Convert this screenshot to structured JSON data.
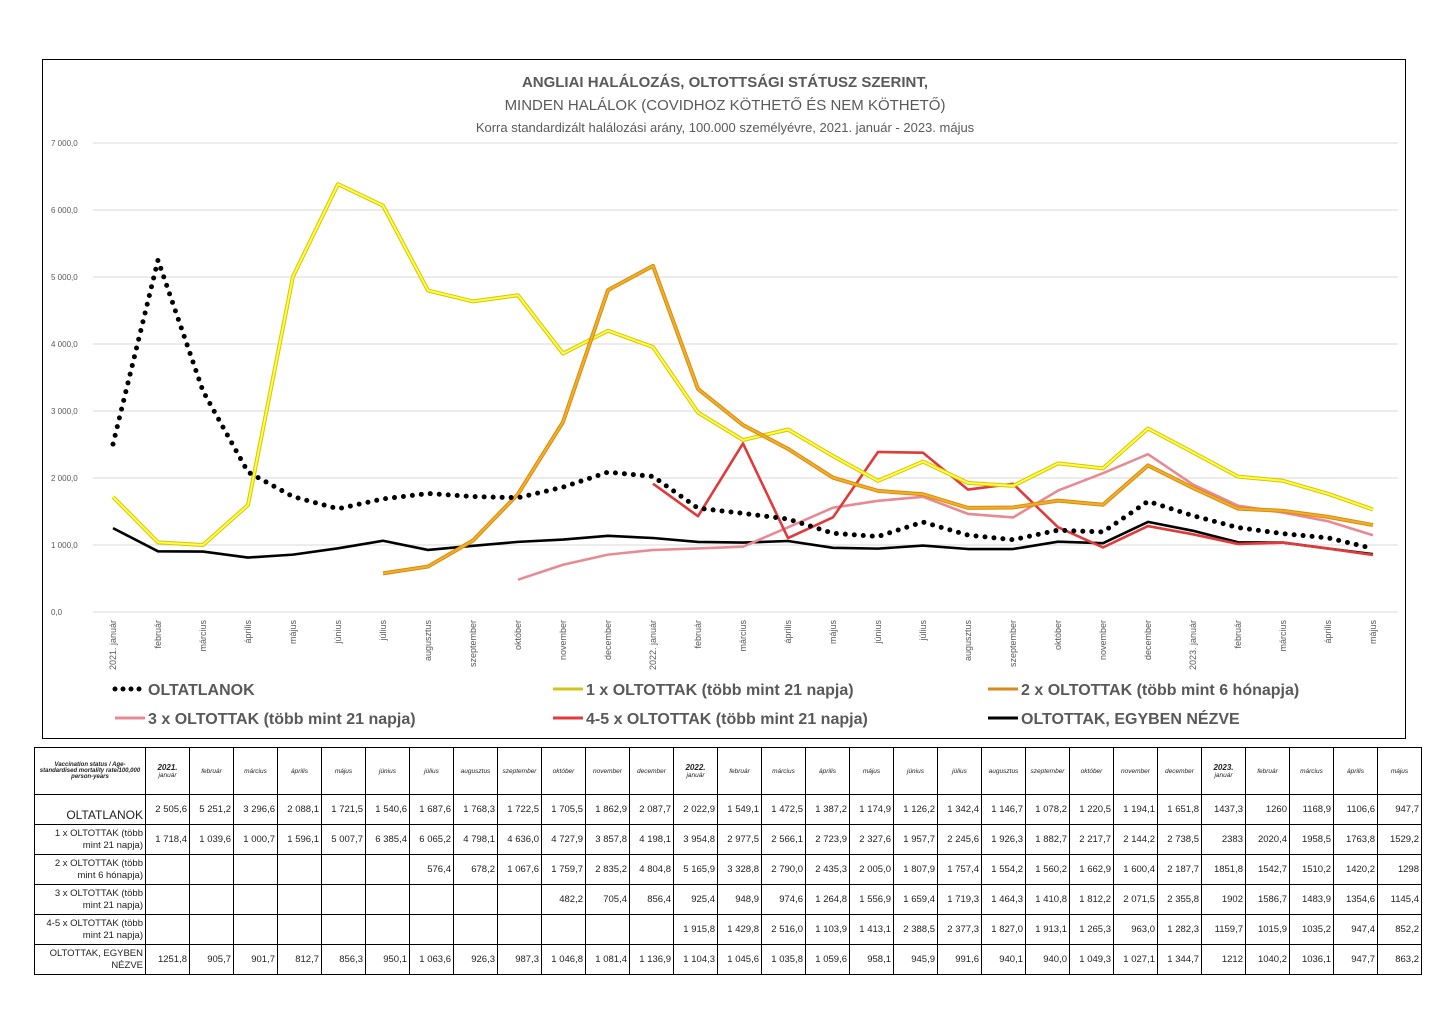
{
  "chart_data": {
    "type": "line",
    "title": "ANGLIAI HALÁLOZÁS, OLTOTTSÁGI STÁTUSZ SZERINT,",
    "subtitle": "MINDEN HALÁLOK (COVIDHOZ KÖTHETŐ ÉS NEM KÖTHETŐ)",
    "subtitle2": "Korra standardizált halálozási arány, 100.000 személyévre, 2021. január - 2023. május",
    "ylim": [
      0,
      7000
    ],
    "yticks": [
      "0,0",
      "1 000,0",
      "2 000,0",
      "3 000,0",
      "4 000,0",
      "5 000,0",
      "6 000,0",
      "7 000,0"
    ],
    "grid": true,
    "legend_position": "bottom",
    "categories": [
      "2021. január",
      "február",
      "március",
      "április",
      "május",
      "június",
      "július",
      "augusztus",
      "szeptember",
      "október",
      "november",
      "december",
      "2022. január",
      "február",
      "március",
      "április",
      "május",
      "június",
      "július",
      "augusztus",
      "szeptember",
      "október",
      "november",
      "december",
      "2023. január",
      "február",
      "március",
      "április",
      "május"
    ],
    "series": [
      {
        "name": "OLTATLANOK",
        "color": "#000000",
        "dash": "dots",
        "values": [
          2505.6,
          5251.2,
          3296.6,
          2088.1,
          1721.5,
          1540.6,
          1687.6,
          1768.3,
          1722.5,
          1705.5,
          1862.9,
          2087.7,
          2022.9,
          1549.1,
          1472.5,
          1387.2,
          1174.9,
          1126.2,
          1342.4,
          1146.7,
          1078.2,
          1220.5,
          1194.1,
          1651.8,
          1437.3,
          1260,
          1168.9,
          1106.6,
          947.7
        ]
      },
      {
        "name": "1 x OLTOTTAK  (több mint 21 napja)",
        "color": "#ffff33",
        "edge": "#d4c41a",
        "values": [
          1718.4,
          1039.6,
          1000.7,
          1596.1,
          5007.7,
          6385.4,
          6065.2,
          4798.1,
          4636.0,
          4727.9,
          3857.8,
          4198.1,
          3954.8,
          2977.5,
          2566.1,
          2723.9,
          2327.6,
          1957.7,
          2245.6,
          1926.3,
          1882.7,
          2217.7,
          2144.2,
          2738.5,
          2383,
          2020.4,
          1958.5,
          1763.8,
          1529.2
        ]
      },
      {
        "name": "2 x OLTOTTAK (több mint 6 hónapja)",
        "color": "#f2b01e",
        "edge": "#d88a1a",
        "values": [
          null,
          null,
          null,
          null,
          null,
          null,
          576.4,
          678.2,
          1067.6,
          1759.7,
          2835.2,
          4804.8,
          5165.9,
          3328.8,
          2790.0,
          2435.3,
          2005.0,
          1807.9,
          1757.4,
          1554.2,
          1560.2,
          1662.9,
          1600.4,
          2187.7,
          1851.8,
          1542.7,
          1510.2,
          1420.2,
          1298
        ]
      },
      {
        "name": "3 x OLTOTTAK (több mint 21 napja)",
        "color": "#e88a94",
        "values": [
          null,
          null,
          null,
          null,
          null,
          null,
          null,
          null,
          null,
          482.2,
          705.4,
          856.4,
          925.4,
          948.9,
          974.6,
          1264.8,
          1556.9,
          1659.4,
          1719.3,
          1464.3,
          1410.8,
          1812.2,
          2071.5,
          2355.8,
          1902,
          1586.7,
          1483.9,
          1354.6,
          1145.4
        ]
      },
      {
        "name": "4-5 x OLTOTTAK (több mint 21 napja)",
        "color": "#e03a3a",
        "values": [
          null,
          null,
          null,
          null,
          null,
          null,
          null,
          null,
          null,
          null,
          null,
          null,
          1915.8,
          1429.8,
          2516.0,
          1103.9,
          1413.1,
          2388.5,
          2377.3,
          1827.0,
          1913.1,
          1265.3,
          963.0,
          1282.3,
          1159.7,
          1015.9,
          1035.2,
          947.4,
          852.2
        ]
      },
      {
        "name": "OLTOTTAK, EGYBEN NÉZVE",
        "color": "#000000",
        "values": [
          1251.8,
          905.7,
          901.7,
          812.7,
          856.3,
          950.1,
          1063.6,
          926.3,
          987.3,
          1046.8,
          1081.4,
          1136.9,
          1104.3,
          1045.6,
          1035.8,
          1059.6,
          958.1,
          945.9,
          991.6,
          940.1,
          940.0,
          1049.3,
          1027.1,
          1344.7,
          1212,
          1040.2,
          1036.1,
          947.7,
          863.2
        ]
      }
    ]
  },
  "table": {
    "corner": "Vaccination status / Age-standardised mortality rate/100,000 person-years",
    "headers": [
      {
        "year": "2021.",
        "month": "január"
      },
      {
        "month": "február"
      },
      {
        "month": "március"
      },
      {
        "month": "április"
      },
      {
        "month": "május"
      },
      {
        "month": "június"
      },
      {
        "month": "július"
      },
      {
        "month": "augusztus"
      },
      {
        "month": "szeptember"
      },
      {
        "month": "október"
      },
      {
        "month": "november"
      },
      {
        "month": "december"
      },
      {
        "year": "2022.",
        "month": "január"
      },
      {
        "month": "február"
      },
      {
        "month": "március"
      },
      {
        "month": "április"
      },
      {
        "month": "május"
      },
      {
        "month": "június"
      },
      {
        "month": "július"
      },
      {
        "month": "augusztus"
      },
      {
        "month": "szeptember"
      },
      {
        "month": "október"
      },
      {
        "month": "november"
      },
      {
        "month": "december"
      },
      {
        "year": "2023.",
        "month": "január"
      },
      {
        "month": "február"
      },
      {
        "month": "március"
      },
      {
        "month": "április"
      },
      {
        "month": "május"
      }
    ],
    "rows": [
      {
        "label": "OLTATLANOK",
        "cells": [
          "2 505,6",
          "5 251,2",
          "3 296,6",
          "2 088,1",
          "1 721,5",
          "1 540,6",
          "1 687,6",
          "1 768,3",
          "1 722,5",
          "1 705,5",
          "1 862,9",
          "2 087,7",
          "2 022,9",
          "1 549,1",
          "1 472,5",
          "1 387,2",
          "1 174,9",
          "1 126,2",
          "1 342,4",
          "1 146,7",
          "1 078,2",
          "1 220,5",
          "1 194,1",
          "1 651,8",
          "1437,3",
          "1260",
          "1168,9",
          "1106,6",
          "947,7"
        ]
      },
      {
        "label": "1 x OLTOTTAK  (több mint 21 napja)",
        "cells": [
          "1 718,4",
          "1 039,6",
          "1 000,7",
          "1 596,1",
          "5 007,7",
          "6 385,4",
          "6 065,2",
          "4 798,1",
          "4 636,0",
          "4 727,9",
          "3 857,8",
          "4 198,1",
          "3 954,8",
          "2 977,5",
          "2 566,1",
          "2 723,9",
          "2 327,6",
          "1 957,7",
          "2 245,6",
          "1 926,3",
          "1 882,7",
          "2 217,7",
          "2 144,2",
          "2 738,5",
          "2383",
          "2020,4",
          "1958,5",
          "1763,8",
          "1529,2"
        ]
      },
      {
        "label": "2 x OLTOTTAK (több mint 6 hónapja)",
        "cells": [
          "",
          "",
          "",
          "",
          "",
          "",
          "576,4",
          "678,2",
          "1 067,6",
          "1 759,7",
          "2 835,2",
          "4 804,8",
          "5 165,9",
          "3 328,8",
          "2 790,0",
          "2 435,3",
          "2 005,0",
          "1 807,9",
          "1 757,4",
          "1 554,2",
          "1 560,2",
          "1 662,9",
          "1 600,4",
          "2 187,7",
          "1851,8",
          "1542,7",
          "1510,2",
          "1420,2",
          "1298"
        ]
      },
      {
        "label": "3 x OLTOTTAK (több mint 21 napja)",
        "cells": [
          "",
          "",
          "",
          "",
          "",
          "",
          "",
          "",
          "",
          "482,2",
          "705,4",
          "856,4",
          "925,4",
          "948,9",
          "974,6",
          "1 264,8",
          "1 556,9",
          "1 659,4",
          "1 719,3",
          "1 464,3",
          "1 410,8",
          "1 812,2",
          "2 071,5",
          "2 355,8",
          "1902",
          "1586,7",
          "1483,9",
          "1354,6",
          "1145,4"
        ]
      },
      {
        "label": "4-5 x OLTOTTAK (több mint 21 napja)",
        "cells": [
          "",
          "",
          "",
          "",
          "",
          "",
          "",
          "",
          "",
          "",
          "",
          "",
          "1 915,8",
          "1 429,8",
          "2 516,0",
          "1 103,9",
          "1 413,1",
          "2 388,5",
          "2 377,3",
          "1 827,0",
          "1 913,1",
          "1 265,3",
          "963,0",
          "1 282,3",
          "1159,7",
          "1015,9",
          "1035,2",
          "947,4",
          "852,2"
        ]
      },
      {
        "label": "OLTOTTAK, EGYBEN NÉZVE",
        "cells": [
          "1251,8",
          "905,7",
          "901,7",
          "812,7",
          "856,3",
          "950,1",
          "1 063,6",
          "926,3",
          "987,3",
          "1 046,8",
          "1 081,4",
          "1 136,9",
          "1 104,3",
          "1 045,6",
          "1 035,8",
          "1 059,6",
          "958,1",
          "945,9",
          "991,6",
          "940,1",
          "940,0",
          "1 049,3",
          "1 027,1",
          "1 344,7",
          "1212",
          "1040,2",
          "1036,1",
          "947,7",
          "863,2"
        ]
      }
    ]
  }
}
